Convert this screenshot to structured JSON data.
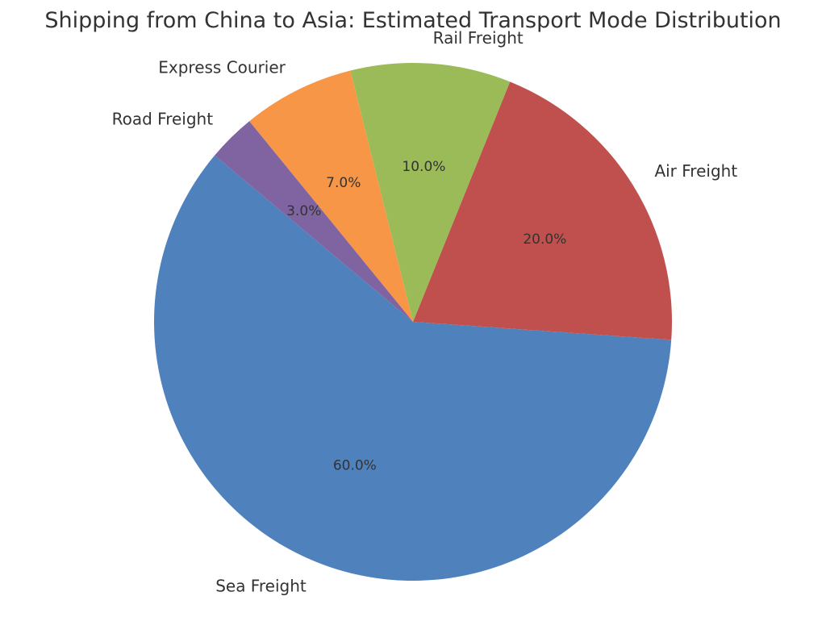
{
  "chart_data": {
    "type": "pie",
    "title": "Shipping from China to Asia: Estimated Transport Mode Distribution",
    "categories": [
      "Sea Freight",
      "Air Freight",
      "Rail Freight",
      "Express Courier",
      "Road Freight"
    ],
    "values": [
      60.0,
      20.0,
      10.0,
      7.0,
      3.0
    ],
    "value_labels": [
      "60.0%",
      "20.0%",
      "10.0%",
      "7.0%",
      "3.0%"
    ],
    "colors": [
      "#4f81bd",
      "#c0504d",
      "#9bbb59",
      "#f79646",
      "#8064a2"
    ],
    "start_angle_deg": 140,
    "direction": "counterclockwise",
    "legend": "none"
  }
}
